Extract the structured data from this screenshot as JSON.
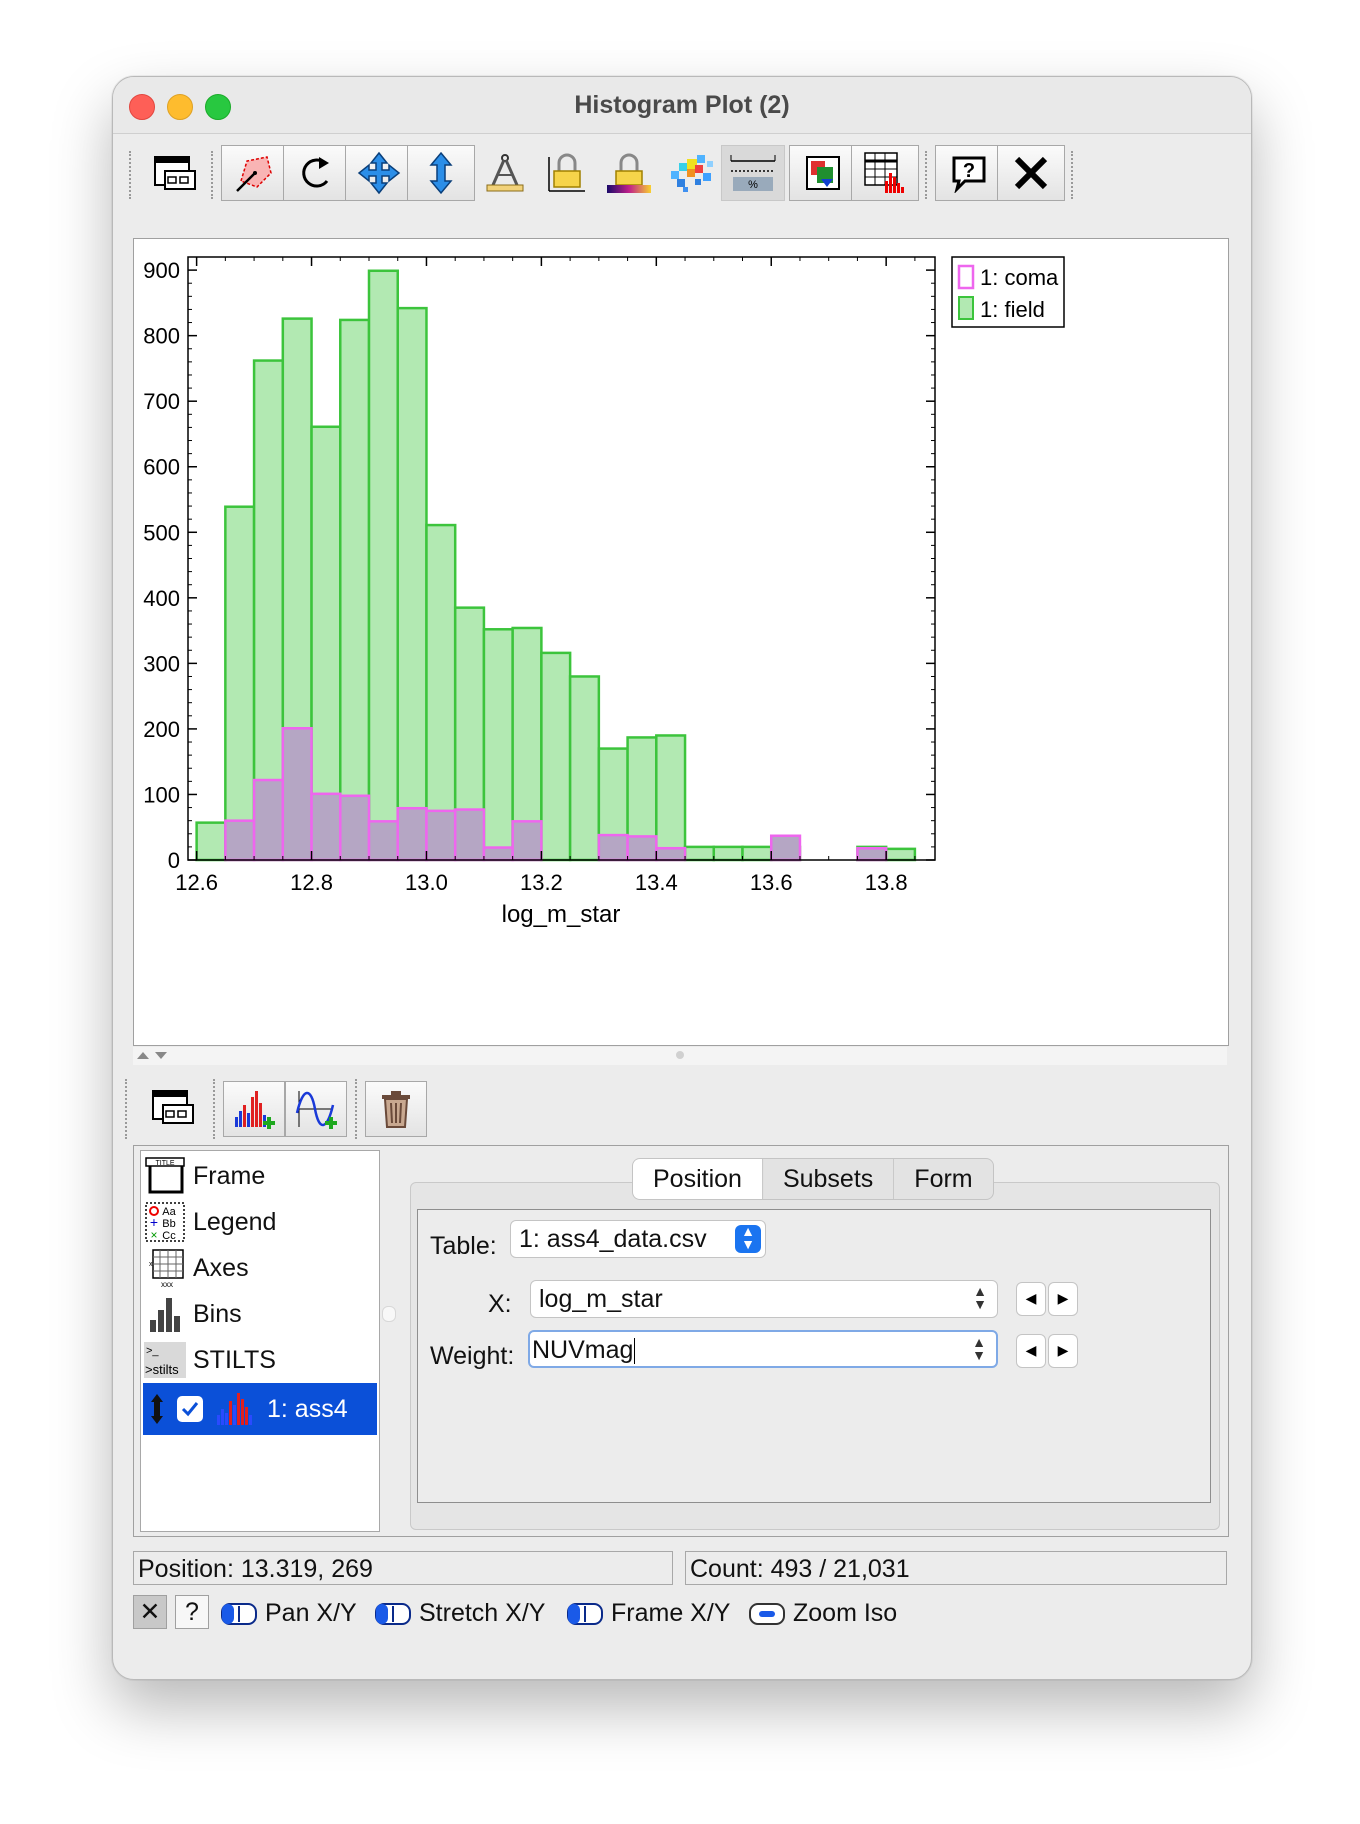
{
  "window": {
    "title": "Histogram Plot (2)"
  },
  "toolbar": {
    "icons": [
      "window-icon",
      "blob-select-icon",
      "replot-icon",
      "pan-axes-icon",
      "y-stretch-icon",
      "axis-compass-icon",
      "axis-lock-icon",
      "aux-lock-icon",
      "density-icon",
      "bar-form-icon",
      "export-icon",
      "histogram-table-icon",
      "help-icon",
      "close-icon"
    ]
  },
  "chart_data": {
    "type": "bar",
    "xlabel": "log_m_star",
    "ylabel": "",
    "xlim": [
      12.585,
      13.885
    ],
    "ylim": [
      0,
      920
    ],
    "x_ticks": [
      "12.6",
      "12.8",
      "13.0",
      "13.2",
      "13.4",
      "13.6",
      "13.8"
    ],
    "y_ticks": [
      "0",
      "100",
      "200",
      "300",
      "400",
      "500",
      "600",
      "700",
      "800",
      "900"
    ],
    "bin_width": 0.05,
    "bin_left_edges": [
      12.6,
      12.65,
      12.7,
      12.75,
      12.8,
      12.85,
      12.9,
      12.95,
      13.0,
      13.05,
      13.1,
      13.15,
      13.2,
      13.25,
      13.3,
      13.35,
      13.4,
      13.45,
      13.5,
      13.55,
      13.6,
      13.65,
      13.7,
      13.75,
      13.8
    ],
    "series": [
      {
        "name": "1: field",
        "color": "#b2e9b2",
        "edge": "#3cc43c",
        "values": [
          57,
          539,
          762,
          826,
          661,
          824,
          899,
          842,
          511,
          385,
          352,
          354,
          316,
          280,
          170,
          187,
          190,
          20,
          20,
          20,
          20,
          0,
          0,
          20,
          17
        ]
      },
      {
        "name": "1: coma",
        "color": "#b5a6c4",
        "edge": "#ee66ee",
        "values": [
          0,
          60,
          122,
          201,
          101,
          98,
          59,
          79,
          75,
          77,
          19,
          59,
          0,
          0,
          38,
          36,
          18,
          0,
          0,
          0,
          37,
          0,
          0,
          18,
          0
        ]
      }
    ],
    "legend": {
      "placement": "top-right-outside",
      "entries": [
        "1: coma",
        "1: field"
      ]
    },
    "grid": false
  },
  "layer_toolbar": {
    "icons": [
      "window-icon",
      "add-histogram-icon",
      "add-function-icon",
      "delete-icon"
    ]
  },
  "layers": {
    "items": [
      {
        "label": "Frame",
        "icon": "frame-icon"
      },
      {
        "label": "Legend",
        "icon": "legend-icon"
      },
      {
        "label": "Axes",
        "icon": "axes-icon"
      },
      {
        "label": "Bins",
        "icon": "bins-icon"
      },
      {
        "label": "STILTS",
        "icon": "stilts-icon"
      }
    ],
    "selected_label": "1: ass4"
  },
  "tabs": [
    {
      "label": "Position"
    },
    {
      "label": "Subsets"
    },
    {
      "label": "Form"
    }
  ],
  "form": {
    "table_label": "Table:",
    "table_value": "1: ass4_data.csv",
    "x_label": "X:",
    "x_value": "log_m_star",
    "weight_label": "Weight:",
    "weight_value": "NUVmag"
  },
  "status": {
    "position": "Position: 13.319, 269",
    "count": "Count: 493 / 21,031"
  },
  "modes": [
    {
      "label": "Pan X/Y"
    },
    {
      "label": "Stretch X/Y"
    },
    {
      "label": "Frame X/Y"
    },
    {
      "label": "Zoom Iso"
    }
  ],
  "bottom": {
    "close_glyph": "✕",
    "help_glyph": "?"
  }
}
